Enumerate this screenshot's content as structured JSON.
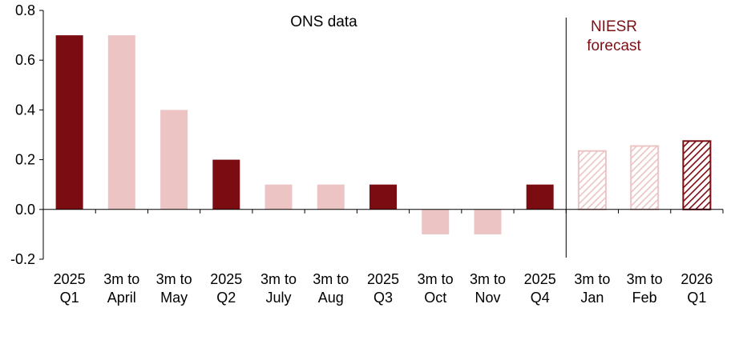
{
  "colors": {
    "ons_quarter": "#7b0d12",
    "ons_rolling": "#ecc4c4",
    "forecast_accent": "#7b1015",
    "axis": "#000000"
  },
  "annotations": {
    "ons": "ONS data",
    "niesr_line1": "NIESR",
    "niesr_line2": "forecast"
  },
  "chart_data": {
    "type": "bar",
    "title": "",
    "xlabel": "",
    "ylabel": "",
    "ylim": [
      -0.2,
      0.8
    ],
    "yticks": [
      "-0.2",
      "0.0",
      "0.2",
      "0.4",
      "0.6",
      "0.8"
    ],
    "grid": false,
    "categories": [
      [
        "2025",
        "Q1"
      ],
      [
        "3m to",
        "April"
      ],
      [
        "3m to",
        "May"
      ],
      [
        "2025",
        "Q2"
      ],
      [
        "3m to",
        "July"
      ],
      [
        "3m to",
        "Aug"
      ],
      [
        "2025",
        "Q3"
      ],
      [
        "3m to",
        "Oct"
      ],
      [
        "3m to",
        "Nov"
      ],
      [
        "2025",
        "Q4"
      ],
      [
        "3m to",
        "Jan"
      ],
      [
        "3m to",
        "Feb"
      ],
      [
        "2026",
        "Q1"
      ]
    ],
    "values": [
      0.7,
      0.7,
      0.4,
      0.2,
      0.1,
      0.1,
      0.1,
      -0.1,
      -0.1,
      0.1,
      0.235,
      0.255,
      0.275
    ],
    "kinds": [
      "quarter",
      "rolling",
      "rolling",
      "quarter",
      "rolling",
      "rolling",
      "quarter",
      "rolling",
      "rolling",
      "quarter",
      "forecast-rolling",
      "forecast-rolling",
      "forecast-quarter"
    ],
    "forecast_start_index": 10
  }
}
